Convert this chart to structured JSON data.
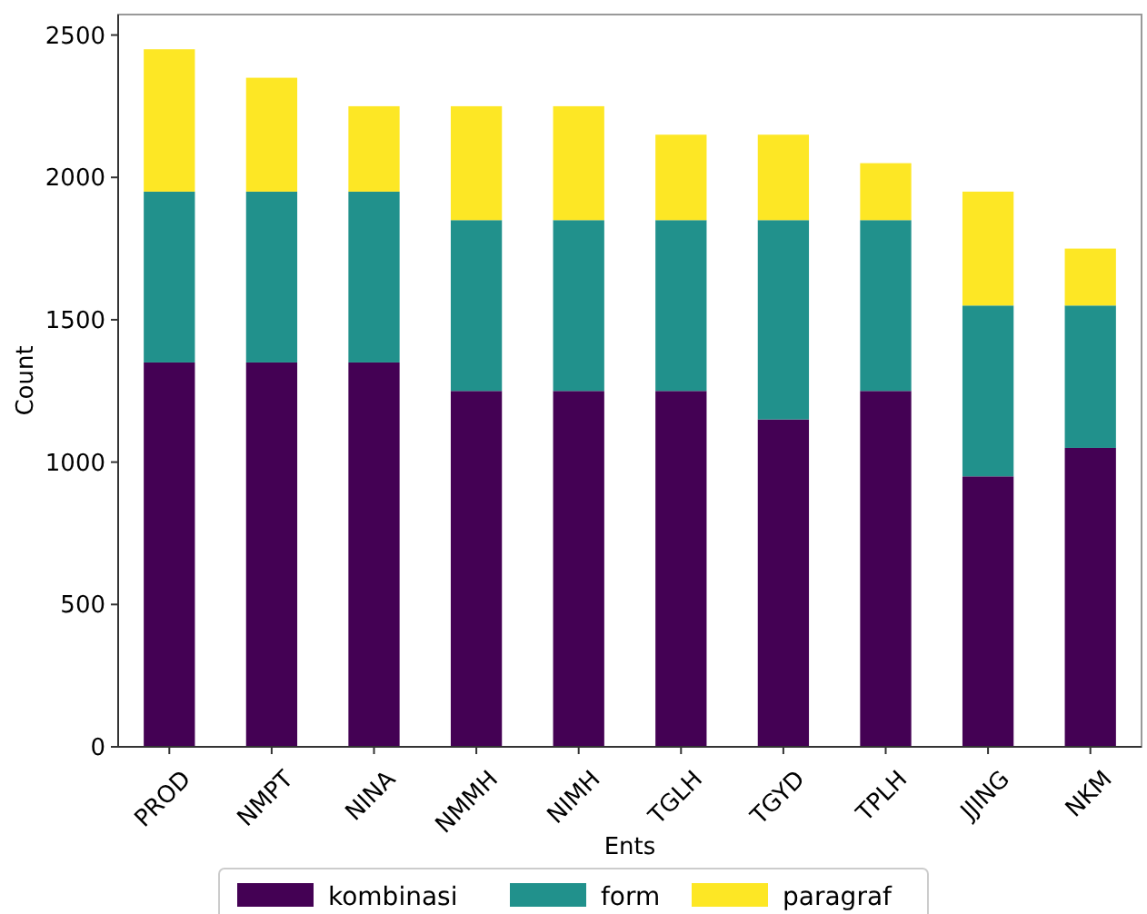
{
  "chart_data": {
    "type": "bar",
    "stacked": true,
    "xlabel": "Ents",
    "ylabel": "Count",
    "categories": [
      "PROD",
      "NMPT",
      "NINA",
      "NMMH",
      "NIMH",
      "TGLH",
      "TGYD",
      "TPLH",
      "JJING",
      "NKM"
    ],
    "series": [
      {
        "name": "kombinasi",
        "color": "#440154",
        "values": [
          1350,
          1350,
          1350,
          1250,
          1250,
          1250,
          1150,
          1250,
          950,
          1050
        ]
      },
      {
        "name": "form",
        "color": "#21918c",
        "values": [
          600,
          600,
          600,
          600,
          600,
          600,
          700,
          600,
          600,
          500
        ]
      },
      {
        "name": "paragraf",
        "color": "#fde725",
        "values": [
          500,
          400,
          300,
          400,
          400,
          300,
          300,
          200,
          400,
          200
        ]
      }
    ],
    "ylim": [
      0,
      2572
    ],
    "yticks": [
      0,
      500,
      1000,
      1500,
      2000,
      2500
    ],
    "grid": false,
    "legend": "bottom"
  }
}
